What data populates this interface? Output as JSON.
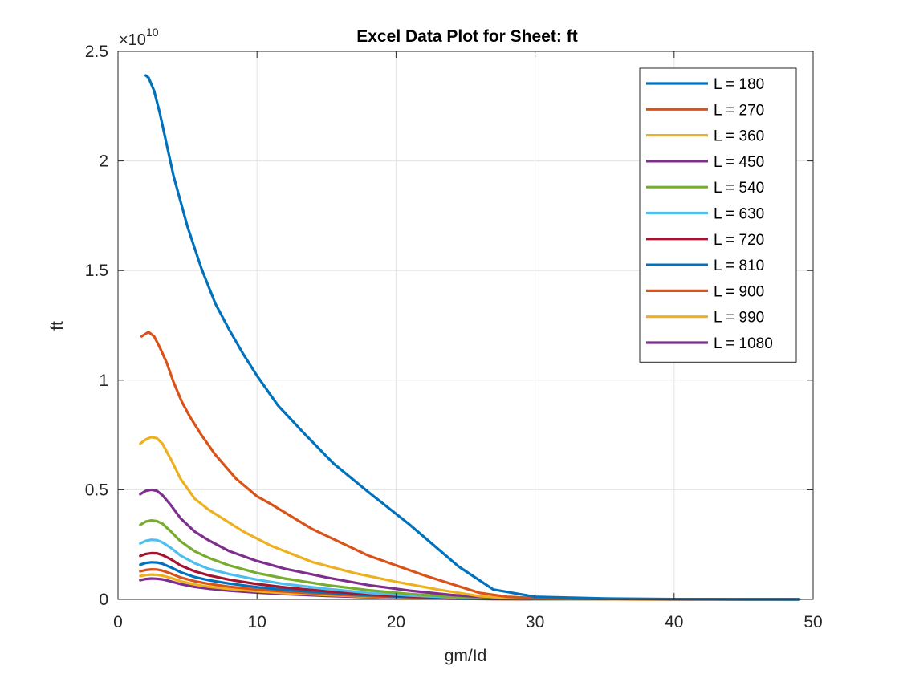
{
  "window": {
    "background": "#ffffff"
  },
  "chart_data": {
    "type": "line",
    "title": "Excel Data Plot for Sheet: ft",
    "xlabel": "gm/Id",
    "ylabel": "ft",
    "y_exponent_label": "×10",
    "y_exponent_power": "10",
    "xlim": [
      0,
      50
    ],
    "ylim": [
      0,
      2.5
    ],
    "xticks": [
      0,
      10,
      20,
      30,
      40,
      50
    ],
    "xtick_labels": [
      "0",
      "10",
      "20",
      "30",
      "40",
      "50"
    ],
    "yticks": [
      0,
      0.5,
      1,
      1.5,
      2,
      2.5
    ],
    "ytick_labels": [
      "0",
      "0.5",
      "1",
      "1.5",
      "2",
      "2.5"
    ],
    "grid": true,
    "legend_position": "top-right",
    "series": [
      {
        "name": "L = 180",
        "color": "#0072BD",
        "x": [
          2.0,
          2.2,
          2.6,
          3.0,
          4.0,
          5.0,
          6.0,
          7.0,
          8.0,
          9.0,
          10.0,
          11.5,
          13.5,
          15.5,
          18.0,
          21.0,
          24.5,
          27.0,
          30.0,
          35.0,
          40.0,
          45.0,
          49.0
        ],
        "y": [
          2.39,
          2.38,
          2.32,
          2.22,
          1.93,
          1.7,
          1.51,
          1.35,
          1.23,
          1.12,
          1.02,
          0.885,
          0.75,
          0.62,
          0.49,
          0.34,
          0.15,
          0.045,
          0.012,
          0.004,
          0.0015,
          0.0007,
          0.0004
        ]
      },
      {
        "name": "L = 270",
        "color": "#D95319",
        "x": [
          1.7,
          2.2,
          2.6,
          3.0,
          3.5,
          4.0,
          4.6,
          5.2,
          6.0,
          7.0,
          8.5,
          10.0,
          11.0,
          14.0,
          18.0,
          22.0,
          26.0,
          28.0,
          30.0,
          35.0,
          40.0,
          45.0,
          49.0
        ],
        "y": [
          1.2,
          1.22,
          1.2,
          1.15,
          1.08,
          0.99,
          0.9,
          0.83,
          0.75,
          0.66,
          0.55,
          0.47,
          0.435,
          0.32,
          0.2,
          0.11,
          0.03,
          0.012,
          0.006,
          0.002,
          0.0009,
          0.0004,
          0.0002
        ]
      },
      {
        "name": "L = 360",
        "color": "#EDB120",
        "x": [
          1.6,
          2.0,
          2.4,
          2.8,
          3.2,
          3.8,
          4.5,
          5.5,
          6.5,
          7.5,
          9.0,
          11.0,
          14.0,
          17.0,
          20.0,
          23.0,
          26.0,
          28.0,
          30.0,
          35.0,
          40.0,
          45.0,
          49.0
        ],
        "y": [
          0.71,
          0.73,
          0.74,
          0.735,
          0.71,
          0.64,
          0.55,
          0.46,
          0.41,
          0.37,
          0.31,
          0.245,
          0.17,
          0.12,
          0.08,
          0.045,
          0.015,
          0.006,
          0.003,
          0.001,
          0.0004,
          0.0002,
          0.0001
        ]
      },
      {
        "name": "L = 450",
        "color": "#7E2F8E",
        "x": [
          1.6,
          2.0,
          2.4,
          2.8,
          3.2,
          3.8,
          4.5,
          5.5,
          6.5,
          8.0,
          10.0,
          12.0,
          15.0,
          18.0,
          21.0,
          24.0,
          27.0,
          30.0,
          35.0,
          40.0,
          45.0,
          49.0
        ],
        "y": [
          0.48,
          0.495,
          0.5,
          0.495,
          0.475,
          0.43,
          0.37,
          0.31,
          0.27,
          0.22,
          0.175,
          0.14,
          0.1,
          0.065,
          0.04,
          0.02,
          0.008,
          0.003,
          0.001,
          0.0004,
          0.0002,
          0.0001
        ]
      },
      {
        "name": "L = 540",
        "color": "#77AC30",
        "x": [
          1.6,
          2.0,
          2.4,
          2.8,
          3.2,
          3.8,
          4.5,
          5.5,
          6.5,
          8.0,
          10.0,
          12.0,
          15.0,
          18.0,
          21.0,
          24.0,
          27.0,
          30.0,
          35.0,
          40.0,
          45.0,
          49.0
        ],
        "y": [
          0.34,
          0.355,
          0.36,
          0.357,
          0.345,
          0.31,
          0.265,
          0.22,
          0.19,
          0.155,
          0.12,
          0.095,
          0.065,
          0.042,
          0.025,
          0.012,
          0.005,
          0.002,
          0.0008,
          0.0003,
          0.0001,
          0.0001
        ]
      },
      {
        "name": "L = 630",
        "color": "#4DBEEE",
        "x": [
          1.6,
          2.0,
          2.4,
          2.8,
          3.2,
          3.8,
          4.5,
          5.5,
          6.5,
          8.0,
          10.0,
          12.0,
          15.0,
          18.0,
          21.0,
          24.0,
          27.0,
          30.0,
          35.0,
          40.0,
          45.0,
          49.0
        ],
        "y": [
          0.255,
          0.267,
          0.272,
          0.27,
          0.26,
          0.235,
          0.2,
          0.165,
          0.14,
          0.115,
          0.09,
          0.07,
          0.048,
          0.03,
          0.018,
          0.009,
          0.004,
          0.0015,
          0.0006,
          0.0002,
          0.0001,
          0.0001
        ]
      },
      {
        "name": "L = 720",
        "color": "#A2142F",
        "x": [
          1.6,
          2.0,
          2.4,
          2.8,
          3.2,
          3.8,
          4.5,
          5.5,
          6.5,
          8.0,
          10.0,
          12.0,
          15.0,
          18.0,
          21.0,
          24.0,
          27.0,
          30.0,
          35.0,
          40.0,
          45.0,
          49.0
        ],
        "y": [
          0.198,
          0.207,
          0.211,
          0.21,
          0.202,
          0.183,
          0.155,
          0.128,
          0.11,
          0.09,
          0.07,
          0.055,
          0.037,
          0.023,
          0.014,
          0.007,
          0.003,
          0.0012,
          0.0005,
          0.0002,
          0.0001,
          0.0001
        ]
      },
      {
        "name": "L = 810",
        "color": "#0072BD",
        "x": [
          1.6,
          2.0,
          2.4,
          2.8,
          3.2,
          3.8,
          4.5,
          5.5,
          6.5,
          8.0,
          10.0,
          12.0,
          15.0,
          18.0,
          21.0,
          24.0,
          27.0,
          30.0,
          35.0,
          40.0,
          45.0,
          49.0
        ],
        "y": [
          0.158,
          0.166,
          0.169,
          0.168,
          0.162,
          0.146,
          0.124,
          0.102,
          0.088,
          0.072,
          0.056,
          0.044,
          0.03,
          0.019,
          0.011,
          0.006,
          0.0025,
          0.001,
          0.0004,
          0.0002,
          0.0001,
          0.0001
        ]
      },
      {
        "name": "L = 900",
        "color": "#D95319",
        "x": [
          1.6,
          2.0,
          2.4,
          2.8,
          3.2,
          3.8,
          4.5,
          5.5,
          6.5,
          8.0,
          10.0,
          12.0,
          15.0,
          18.0,
          21.0,
          24.0,
          27.0,
          30.0,
          35.0,
          40.0,
          45.0,
          49.0
        ],
        "y": [
          0.128,
          0.134,
          0.137,
          0.136,
          0.131,
          0.118,
          0.1,
          0.083,
          0.071,
          0.058,
          0.045,
          0.036,
          0.024,
          0.015,
          0.009,
          0.005,
          0.002,
          0.0008,
          0.0003,
          0.0001,
          0.0001,
          0.0001
        ]
      },
      {
        "name": "L = 990",
        "color": "#EDB120",
        "x": [
          1.6,
          2.0,
          2.4,
          2.8,
          3.2,
          3.8,
          4.5,
          5.5,
          6.5,
          8.0,
          10.0,
          12.0,
          15.0,
          18.0,
          21.0,
          24.0,
          27.0,
          30.0,
          35.0,
          40.0,
          45.0,
          49.0
        ],
        "y": [
          0.106,
          0.111,
          0.113,
          0.112,
          0.108,
          0.098,
          0.083,
          0.068,
          0.058,
          0.048,
          0.037,
          0.029,
          0.02,
          0.012,
          0.007,
          0.004,
          0.0017,
          0.0007,
          0.0003,
          0.0001,
          0.0001,
          0.0001
        ]
      },
      {
        "name": "L = 1080",
        "color": "#7E2F8E",
        "x": [
          1.6,
          2.0,
          2.4,
          2.8,
          3.2,
          3.8,
          4.5,
          5.5,
          6.5,
          8.0,
          10.0,
          12.0,
          15.0,
          18.0,
          21.0,
          24.0,
          27.0,
          30.0,
          35.0,
          40.0,
          45.0,
          49.0
        ],
        "y": [
          0.088,
          0.093,
          0.095,
          0.094,
          0.091,
          0.082,
          0.07,
          0.057,
          0.049,
          0.04,
          0.031,
          0.024,
          0.016,
          0.01,
          0.006,
          0.003,
          0.0014,
          0.0006,
          0.0002,
          0.0001,
          0.0001,
          0.0001
        ]
      }
    ]
  }
}
